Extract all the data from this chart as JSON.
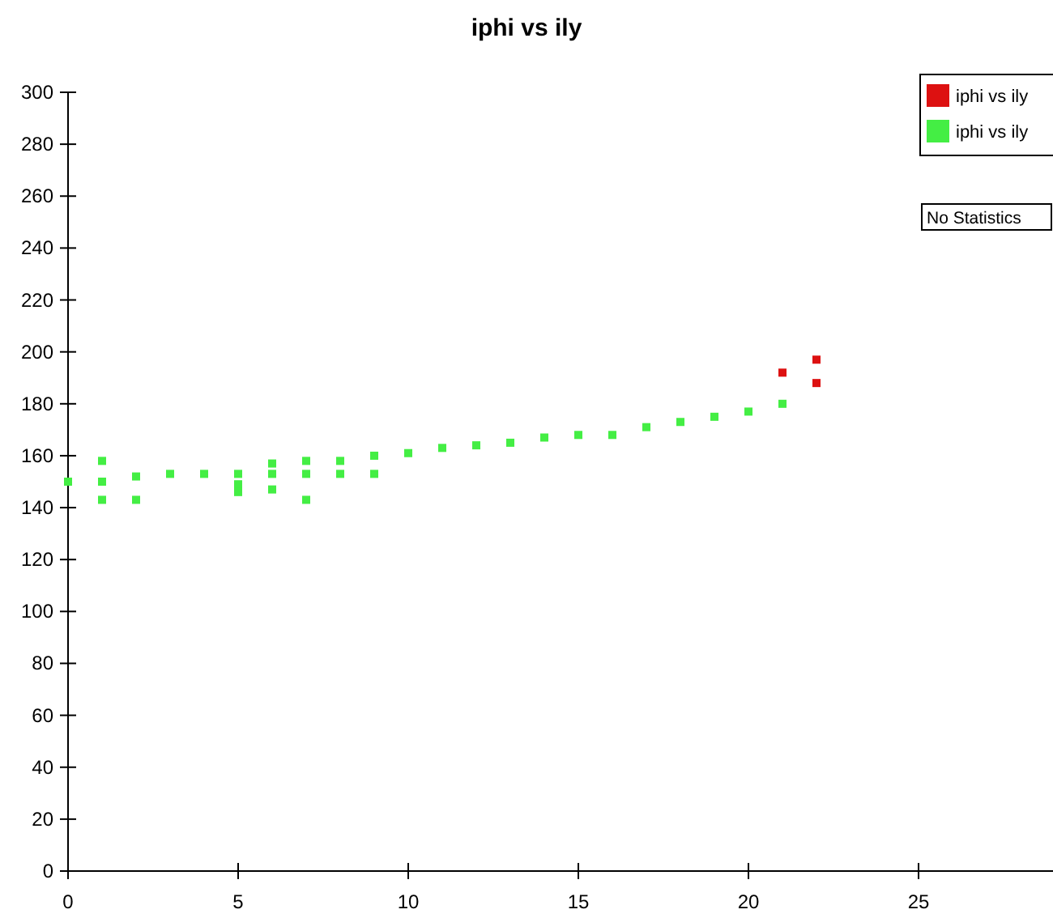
{
  "chart_data": {
    "type": "scatter",
    "title": "iphi vs ily",
    "marker": "square",
    "grid": false,
    "legend": "top right",
    "xlim": [
      0,
      29
    ],
    "xticks": [
      0,
      5,
      10,
      15,
      20,
      25
    ],
    "ylim": [
      0,
      300
    ],
    "yticks": [
      0,
      20,
      40,
      60,
      80,
      100,
      120,
      140,
      160,
      180,
      200,
      220,
      240,
      260,
      280,
      300
    ],
    "series": [
      {
        "name": "iphi vs ily",
        "color": "#dd1111",
        "x": [
          21,
          22,
          22
        ],
        "values": [
          192,
          197,
          188
        ]
      },
      {
        "name": "iphi vs ily",
        "color": "#44ee44",
        "x": [
          0,
          1,
          1,
          1,
          2,
          2,
          3,
          4,
          5,
          5,
          5,
          6,
          6,
          6,
          7,
          7,
          7,
          8,
          8,
          9,
          9,
          10,
          11,
          12,
          13,
          14,
          15,
          16,
          17,
          18,
          19,
          20,
          21
        ],
        "values": [
          150,
          158,
          150,
          143,
          152,
          143,
          153,
          153,
          153,
          149,
          146,
          157,
          153,
          147,
          158,
          153,
          143,
          158,
          153,
          160,
          153,
          161,
          163,
          164,
          165,
          167,
          168,
          168,
          171,
          173,
          175,
          177,
          180
        ]
      }
    ],
    "annotations": [
      "No Statistics"
    ]
  }
}
